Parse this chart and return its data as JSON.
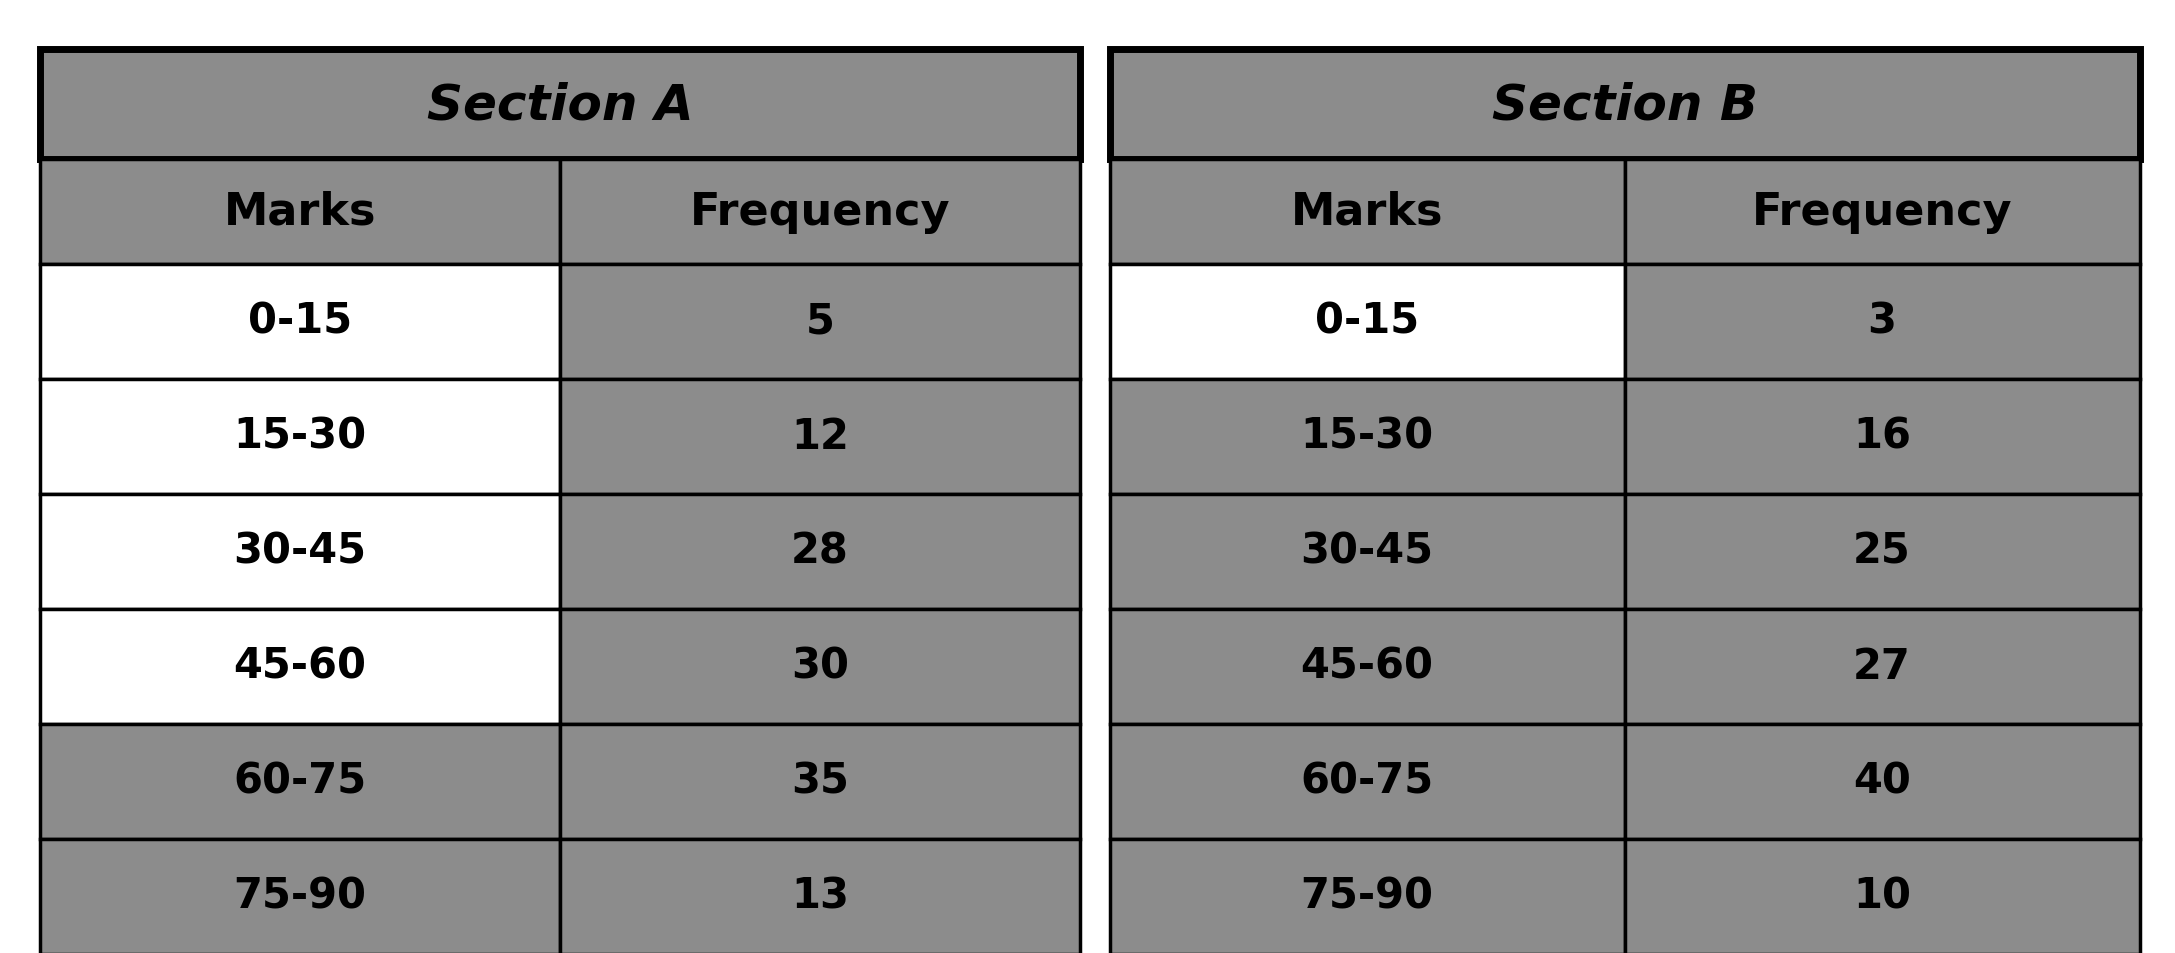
{
  "section_a": {
    "header": "Section A",
    "col1_header": "Marks",
    "col2_header": "Frequency",
    "marks": [
      "0-15",
      "15-30",
      "30-45",
      "45-60",
      "60-75",
      "75-90"
    ],
    "frequency": [
      "5",
      "12",
      "28",
      "30",
      "35",
      "13"
    ]
  },
  "section_b": {
    "header": "Section B",
    "col1_header": "Marks",
    "col2_header": "Frequency",
    "marks": [
      "0-15",
      "15-30",
      "30-45",
      "45-60",
      "60-75",
      "75-90"
    ],
    "frequency": [
      "3",
      "16",
      "25",
      "27",
      "40",
      "10"
    ]
  },
  "fig_bg": "#ffffff",
  "table_bg": "#8c8c8c",
  "border_color": "#000000",
  "text_color": "#000000",
  "header_fontsize": 36,
  "subheader_fontsize": 32,
  "data_fontsize": 30,
  "lw_outer": 5,
  "lw_inner": 2.5
}
